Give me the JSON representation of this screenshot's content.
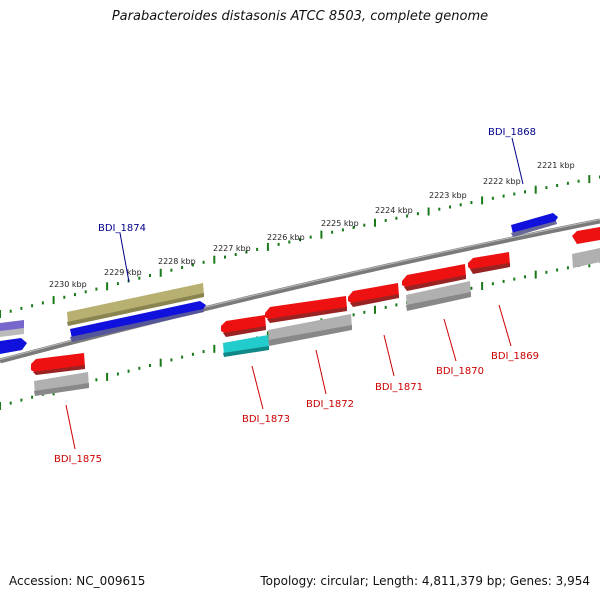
{
  "title": "Parabacteroides distasonis ATCC 8503, complete genome",
  "accession": "Accession: NC_009615",
  "summary": "Topology: circular; Length: 4,811,379 bp; Genes: 3,954",
  "colors": {
    "backbone": "#808080",
    "tick": "#1a7a1a",
    "forward_label": "#00008b",
    "reverse_label": "#cc0000",
    "red": "#ee1111",
    "blue": "#1111dd",
    "grey": "#aaaaaa",
    "olive": "#b8b070",
    "cyan": "#22cccc",
    "purple": "#7766cc"
  },
  "ticks": [
    {
      "label": "2221 kbp"
    },
    {
      "label": "2222 kbp"
    },
    {
      "label": "2223 kbp"
    },
    {
      "label": "2224 kbp"
    },
    {
      "label": "2225 kbp"
    },
    {
      "label": "2226 kbp"
    },
    {
      "label": "2227 kbp"
    },
    {
      "label": "2228 kbp"
    },
    {
      "label": "2229 kbp"
    },
    {
      "label": "2230 kbp"
    }
  ],
  "gene_labels": [
    {
      "id": "BDI_1868",
      "strand": "forward"
    },
    {
      "id": "BDI_1874",
      "strand": "forward"
    },
    {
      "id": "BDI_1869",
      "strand": "reverse"
    },
    {
      "id": "BDI_1870",
      "strand": "reverse"
    },
    {
      "id": "BDI_1871",
      "strand": "reverse"
    },
    {
      "id": "BDI_1872",
      "strand": "reverse"
    },
    {
      "id": "BDI_1873",
      "strand": "reverse"
    },
    {
      "id": "BDI_1875",
      "strand": "reverse"
    }
  ]
}
